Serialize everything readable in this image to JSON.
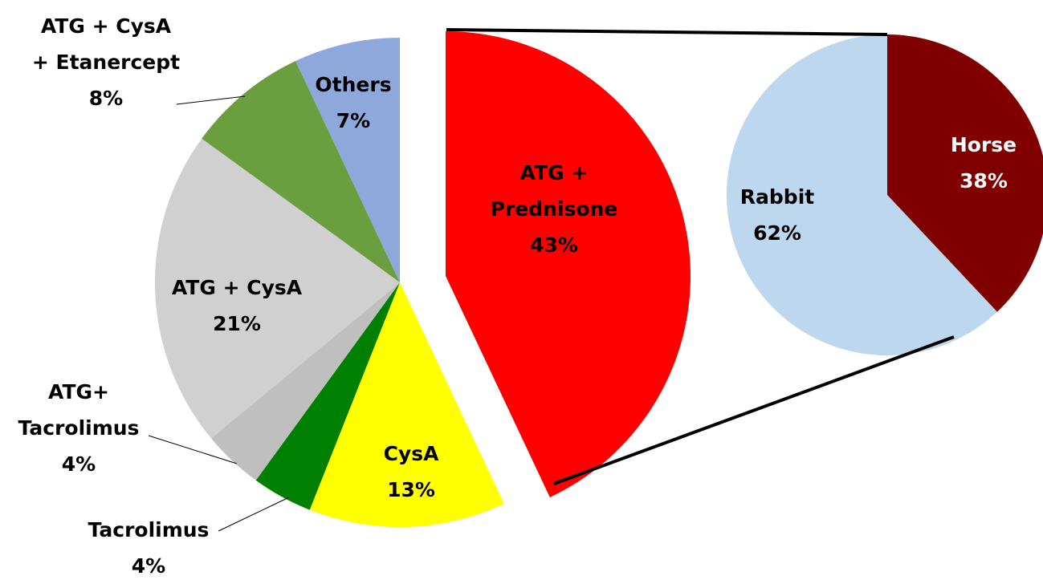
{
  "chart_data": [
    {
      "type": "pie",
      "categories": [
        "ATG + Prednisone",
        "CysA",
        "Tacrolimus",
        "ATG+ Tacrolimus",
        "ATG + CysA",
        "ATG + CysA + Etanercept",
        "Others"
      ],
      "values": [
        43,
        13,
        4,
        4,
        21,
        8,
        7
      ],
      "value_labels": [
        "43%",
        "13%",
        "4%",
        "4%",
        "21%",
        "8%",
        "7%"
      ],
      "colors": [
        "#ff0000",
        "#ffff00",
        "#008000",
        "#bfbfbf",
        "#d0d0d0",
        "#6b9e3e",
        "#8fa8dc"
      ]
    },
    {
      "type": "pie",
      "categories": [
        "Horse",
        "Rabbit"
      ],
      "values": [
        38,
        62
      ],
      "value_labels": [
        "38%",
        "62%"
      ],
      "colors": [
        "#800000",
        "#bdd7ee"
      ]
    }
  ]
}
